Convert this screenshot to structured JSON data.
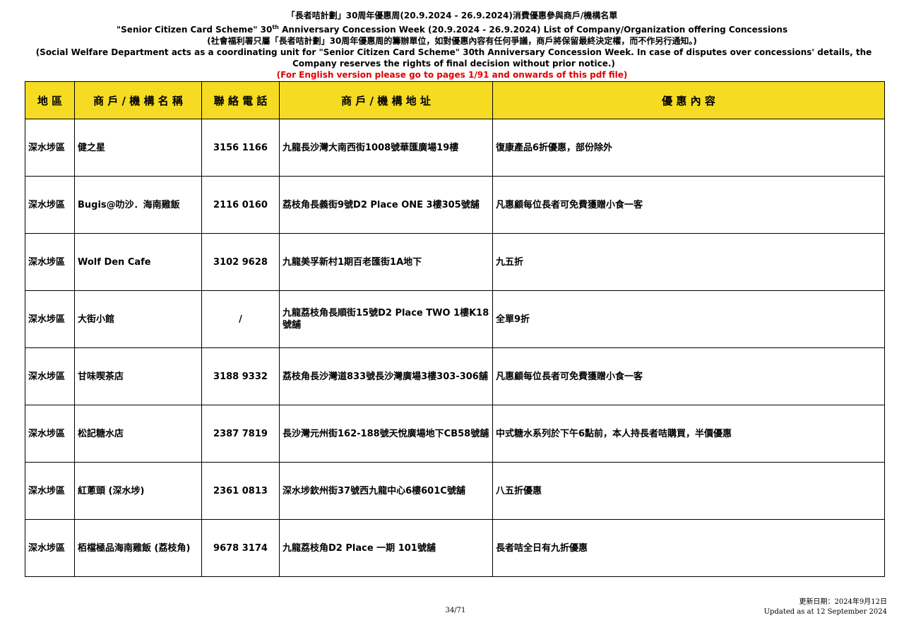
{
  "header": {
    "title_zh": "「長者咭計劃」30周年優惠周(20.9.2024 - 26.9.2024)消費優惠參與商戶/機構名單",
    "title_en_before": "\"Senior Citizen Card Scheme\" 30",
    "title_en_sup": "th",
    "title_en_after": " Anniversary Concession Week (20.9.2024 - 26.9.2024) List of Company/Organization offering Concessions",
    "note_zh": "(社會福利署只屬「長者咭計劃」30周年優惠周的籌辦單位，如對優惠內容有任何爭議，商戶將保留最終決定權，而不作另行通知。)",
    "note_en": "(Social Welfare Department acts as a coordinating unit for \"Senior Citizen Card Scheme\" 30th Anniversary Concession Week. In case of disputes over concessions'  details, the Company reserves the rights of final decision without prior notice.)",
    "note_red": "(For English version please go to pages 1/91 and onwards of this pdf file)"
  },
  "table": {
    "header": [
      "地 區",
      "商 戶 / 機 構 名 稱",
      "聯 絡 電 話",
      "商 戶 / 機 構 地 址",
      "優 惠 內 容"
    ],
    "rows": [
      [
        "深水埗區",
        "健之星",
        "3156 1166",
        "九龍長沙灣大南西街1008號華匯廣場19樓",
        "復康產品6折優惠，部份除外"
      ],
      [
        "深水埗區",
        "Bugis@叻沙．海南雞飯",
        "2116 0160",
        "荔枝角長義街9號D2 Place ONE 3樓305號舖",
        "凡惠顧每位長者可免費獲贈小食一客"
      ],
      [
        "深水埗區",
        "Wolf Den Cafe",
        "3102 9628",
        "九龍美孚新村1期百老匯街1A地下",
        "九五折"
      ],
      [
        "深水埗區",
        "大街小館",
        "/",
        "九龍荔枝角長順街15號D2 Place TWO 1樓K18號舖",
        "全單9折"
      ],
      [
        "深水埗區",
        "甘味喫茶店",
        "3188 9332",
        "荔枝角長沙灣道833號長沙灣廣場3樓303-306舖",
        "凡惠顧每位長者可免費獲贈小食一客"
      ],
      [
        "深水埗區",
        "松記糖水店",
        "2387 7819",
        "長沙灣元州街162-188號天悅廣場地下CB58號舖",
        "中式糖水系列於下午6點前，本人持長者咭購買，半價優惠"
      ],
      [
        "深水埗區",
        "紅蔥頭 (深水埗)",
        "2361 0813",
        "深水埗欽州街37號西九龍中心6樓601C號舖",
        "八五折優惠"
      ],
      [
        "深水埗區",
        "栢檔極品海南雞飯 (荔枝角)",
        "9678 3174",
        "九龍荔枝角D2 Place 一期 101號舖",
        "長者咭全日有九折優惠"
      ]
    ]
  },
  "footer": {
    "page": "34/71",
    "updated_zh": "更新日期：2024年9月12日",
    "updated_en": "Updated as at 12 September 2024"
  }
}
